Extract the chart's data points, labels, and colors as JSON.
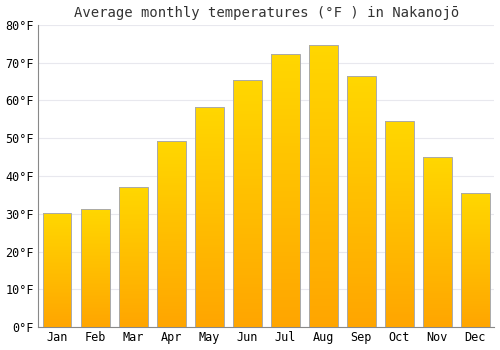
{
  "title": "Average monthly temperatures (°F ) in Nakanojō",
  "months": [
    "Jan",
    "Feb",
    "Mar",
    "Apr",
    "May",
    "Jun",
    "Jul",
    "Aug",
    "Sep",
    "Oct",
    "Nov",
    "Dec"
  ],
  "values": [
    30.2,
    31.3,
    37.0,
    49.3,
    58.3,
    65.5,
    72.3,
    74.8,
    66.4,
    54.5,
    45.0,
    35.4
  ],
  "ylim": [
    0,
    80
  ],
  "yticks": [
    0,
    10,
    20,
    30,
    40,
    50,
    60,
    70,
    80
  ],
  "background_color": "#ffffff",
  "grid_color": "#e8e8ee",
  "bar_color_bottom": "#FFA500",
  "bar_color_top": "#FFD700",
  "bar_edge_color": "#aaaaaa",
  "title_fontsize": 10,
  "tick_fontsize": 8.5
}
